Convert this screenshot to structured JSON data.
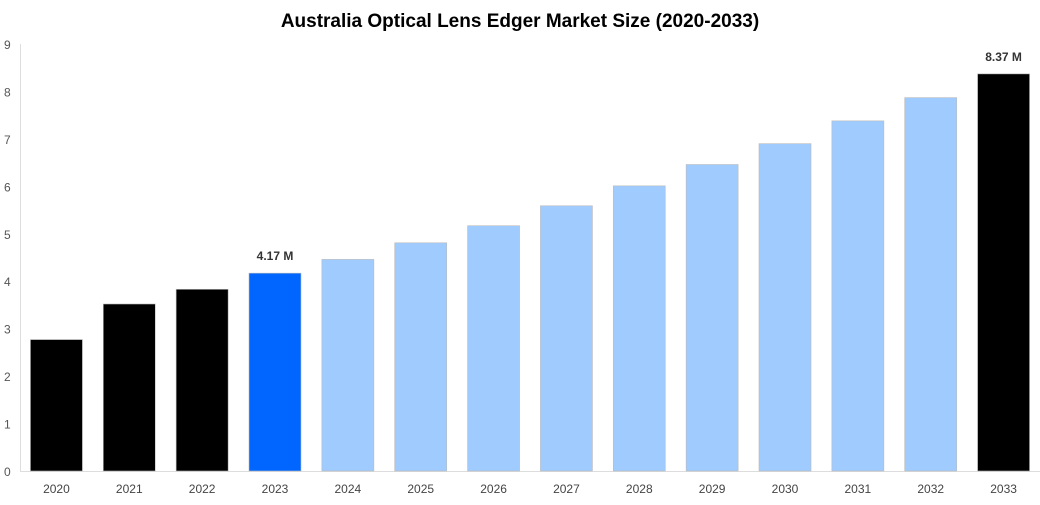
{
  "chart_data": {
    "type": "bar",
    "title": "Australia Optical Lens Edger Market Size (2020-2033)",
    "xlabel": "",
    "ylabel": "",
    "ylim": [
      0,
      9
    ],
    "yticks": [
      "0",
      "1",
      "2",
      "3",
      "4",
      "5",
      "6",
      "7",
      "8",
      "9"
    ],
    "grid": false,
    "categories": [
      "2020",
      "2021",
      "2022",
      "2023",
      "2024",
      "2025",
      "2026",
      "2027",
      "2028",
      "2029",
      "2030",
      "2031",
      "2032",
      "2033"
    ],
    "values": [
      2.77,
      3.52,
      3.83,
      4.17,
      4.46,
      4.81,
      5.17,
      5.59,
      6.01,
      6.46,
      6.9,
      7.38,
      7.87,
      8.37
    ],
    "bar_colors": [
      "#000000",
      "#000000",
      "#000000",
      "#0066ff",
      "#a0cbff",
      "#a0cbff",
      "#a0cbff",
      "#a0cbff",
      "#a0cbff",
      "#a0cbff",
      "#a0cbff",
      "#a0cbff",
      "#a0cbff",
      "#000000"
    ],
    "data_labels": [
      {
        "category": "2023",
        "text": "4.17 M"
      },
      {
        "category": "2033",
        "text": "8.37 M"
      }
    ]
  }
}
